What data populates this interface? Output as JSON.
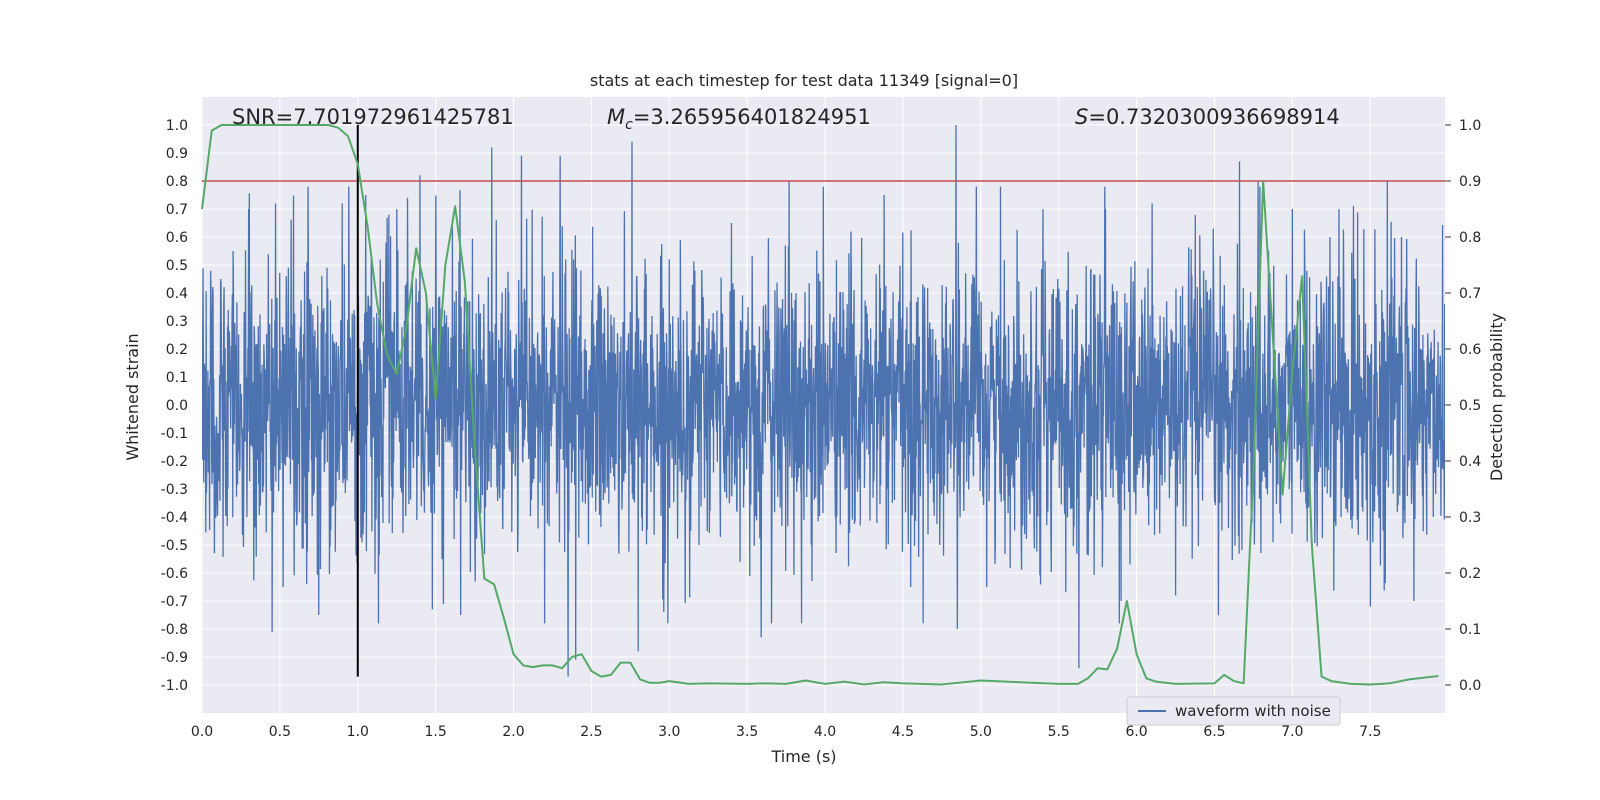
{
  "chart_data": {
    "type": "line",
    "title": "stats at each timestep for test data 11349 [signal=0]",
    "xlabel": "Time (s)",
    "ylabel": "Whitened strain",
    "y2label": "Detection probability",
    "xlim": [
      0.0,
      7.98
    ],
    "ylim": [
      -1.1,
      1.1
    ],
    "y2lim": [
      -0.05,
      1.05
    ],
    "xticks": [
      "0.0",
      "0.5",
      "1.0",
      "1.5",
      "2.0",
      "2.5",
      "3.0",
      "3.5",
      "4.0",
      "4.5",
      "5.0",
      "5.5",
      "6.0",
      "6.5",
      "7.0",
      "7.5"
    ],
    "yticks": [
      "-1.0",
      "-0.9",
      "-0.8",
      "-0.7",
      "-0.6",
      "-0.5",
      "-0.4",
      "-0.3",
      "-0.2",
      "-0.1",
      "0.0",
      "0.1",
      "0.2",
      "0.3",
      "0.4",
      "0.5",
      "0.6",
      "0.7",
      "0.8",
      "0.9",
      "1.0"
    ],
    "y2ticks": [
      "0.0",
      "0.1",
      "0.2",
      "0.3",
      "0.4",
      "0.5",
      "0.6",
      "0.7",
      "0.8",
      "0.9",
      "1.0"
    ],
    "grid": true,
    "legend": {
      "position": "lower-right",
      "entries": [
        "waveform with noise"
      ]
    },
    "annotations": {
      "snr": "SNR=7.701972961425781",
      "mc_symbol": "M",
      "mc_sub": "c",
      "mc_value": "=3.265956401824951",
      "s_symbol": "S",
      "s_value": "=0.7320300936698914"
    },
    "threshold": 0.9,
    "marker_time": 1.0,
    "colors": {
      "waveform": "#4c72b0",
      "probability": "#55a868",
      "threshold": "#c44e52",
      "marker": "#000000",
      "plot_bg": "#eaeaf2",
      "grid": "#ffffff"
    },
    "series": [
      {
        "name": "waveform with noise",
        "axis": "left",
        "style": "noisy strain, sampled densely",
        "x_range": [
          0.0,
          7.98
        ],
        "typical_amplitude": 0.25,
        "peaks": [
          {
            "x": 0.12,
            "y": 0.45
          },
          {
            "x": 0.2,
            "y": 0.55
          },
          {
            "x": 0.3,
            "y": 0.7
          },
          {
            "x": 0.45,
            "y": 0.76
          },
          {
            "x": 0.45,
            "y": -0.81
          },
          {
            "x": 0.52,
            "y": -0.65
          },
          {
            "x": 0.75,
            "y": -0.75
          },
          {
            "x": 0.9,
            "y": 0.72
          },
          {
            "x": 1.05,
            "y": 0.75
          },
          {
            "x": 1.2,
            "y": 0.68
          },
          {
            "x": 1.25,
            "y": 0.7
          },
          {
            "x": 1.32,
            "y": 0.74
          },
          {
            "x": 1.4,
            "y": 0.82
          },
          {
            "x": 1.48,
            "y": -0.73
          },
          {
            "x": 1.86,
            "y": 0.92
          },
          {
            "x": 1.89,
            "y": 0.66
          },
          {
            "x": 2.05,
            "y": 0.89
          },
          {
            "x": 2.2,
            "y": -0.78
          },
          {
            "x": 2.3,
            "y": 0.89
          },
          {
            "x": 2.35,
            "y": -0.97
          },
          {
            "x": 2.4,
            "y": -0.91
          },
          {
            "x": 2.76,
            "y": 0.94
          },
          {
            "x": 2.8,
            "y": -0.88
          },
          {
            "x": 3.4,
            "y": 0.65
          },
          {
            "x": 3.59,
            "y": -0.83
          },
          {
            "x": 3.77,
            "y": 0.8
          },
          {
            "x": 3.85,
            "y": -0.78
          },
          {
            "x": 4.38,
            "y": 0.75
          },
          {
            "x": 4.55,
            "y": -0.65
          },
          {
            "x": 4.84,
            "y": 1.0
          },
          {
            "x": 4.85,
            "y": -0.8
          },
          {
            "x": 5.4,
            "y": 0.7
          },
          {
            "x": 5.63,
            "y": -0.94
          },
          {
            "x": 5.8,
            "y": 0.7
          },
          {
            "x": 5.9,
            "y": -0.7
          },
          {
            "x": 6.1,
            "y": 0.72
          },
          {
            "x": 6.25,
            "y": -0.68
          },
          {
            "x": 6.66,
            "y": 0.87
          },
          {
            "x": 6.78,
            "y": 0.8
          },
          {
            "x": 7.0,
            "y": 0.7
          },
          {
            "x": 7.3,
            "y": 0.7
          },
          {
            "x": 7.5,
            "y": -0.72
          },
          {
            "x": 7.61,
            "y": 0.8
          },
          {
            "x": 7.7,
            "y": 0.6
          },
          {
            "x": 7.78,
            "y": -0.7
          }
        ]
      },
      {
        "name": "",
        "axis": "right",
        "x": [
          0.0,
          0.0625,
          0.125,
          0.1875,
          0.25,
          0.3125,
          0.375,
          0.4375,
          0.5,
          0.5625,
          0.625,
          0.6875,
          0.75,
          0.8125,
          0.875,
          0.9375,
          1.0,
          1.0625,
          1.125,
          1.1875,
          1.25,
          1.3125,
          1.375,
          1.4375,
          1.5,
          1.5625,
          1.625,
          1.6875,
          1.75,
          1.8125,
          1.875,
          1.9375,
          2.0,
          2.0625,
          2.125,
          2.1875,
          2.25,
          2.3125,
          2.375,
          2.4375,
          2.5,
          2.5625,
          2.625,
          2.6875,
          2.75,
          2.8125,
          2.875,
          2.9375,
          3.0,
          3.125,
          3.25,
          3.5,
          3.625,
          3.75,
          3.875,
          4.0,
          4.125,
          4.25,
          4.375,
          4.5,
          4.75,
          5.0,
          5.25,
          5.5,
          5.625,
          5.6875,
          5.75,
          5.8125,
          5.875,
          5.9375,
          6.0,
          6.0625,
          6.125,
          6.25,
          6.5,
          6.5625,
          6.625,
          6.6875,
          6.75,
          6.8125,
          6.875,
          6.9375,
          7.0,
          7.0625,
          7.125,
          7.1875,
          7.25,
          7.375,
          7.5,
          7.625,
          7.75,
          7.875,
          7.9375
        ],
        "values": [
          0.85,
          0.99,
          1.0,
          1.0,
          1.0,
          1.0,
          1.0,
          1.0,
          1.0,
          1.0,
          1.0,
          1.0,
          1.0,
          1.0,
          0.995,
          0.98,
          0.93,
          0.82,
          0.68,
          0.59,
          0.555,
          0.64,
          0.78,
          0.7,
          0.51,
          0.75,
          0.855,
          0.72,
          0.43,
          0.19,
          0.18,
          0.12,
          0.055,
          0.035,
          0.032,
          0.035,
          0.035,
          0.03,
          0.05,
          0.055,
          0.025,
          0.015,
          0.018,
          0.04,
          0.04,
          0.01,
          0.004,
          0.004,
          0.007,
          0.002,
          0.003,
          0.002,
          0.003,
          0.002,
          0.008,
          0.002,
          0.006,
          0.001,
          0.005,
          0.003,
          0.001,
          0.008,
          0.005,
          0.002,
          0.002,
          0.012,
          0.03,
          0.028,
          0.065,
          0.15,
          0.055,
          0.012,
          0.006,
          0.002,
          0.003,
          0.018,
          0.007,
          0.003,
          0.38,
          0.9,
          0.62,
          0.34,
          0.56,
          0.73,
          0.25,
          0.015,
          0.007,
          0.002,
          0.001,
          0.003,
          0.01,
          0.014,
          0.016
        ]
      }
    ]
  }
}
